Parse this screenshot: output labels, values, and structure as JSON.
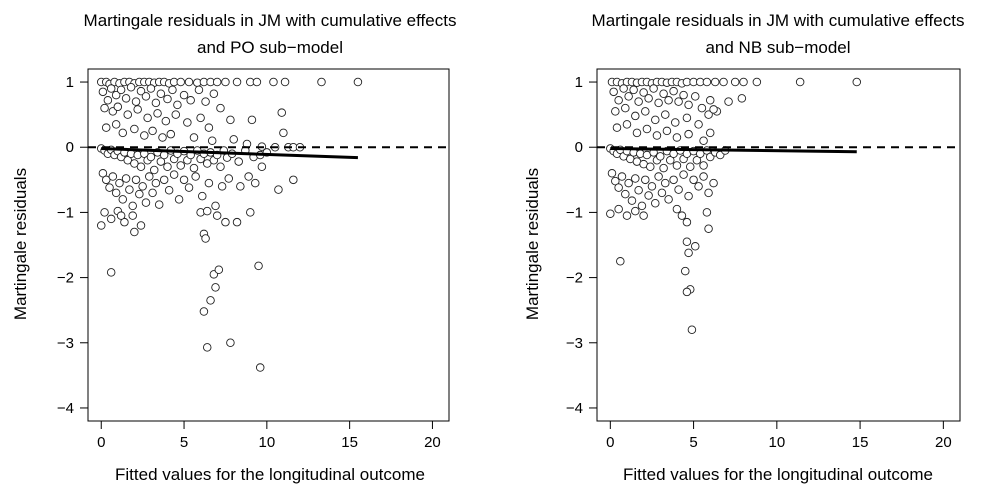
{
  "chart_data": [
    {
      "type": "scatter",
      "title": "Martingale residuals in JM with cumulative effects",
      "subtitle": "and PO sub−model",
      "xlabel": "Fitted values for the longitudinal outcome",
      "ylabel": "Martingale residuals",
      "xlim": [
        -0.8,
        21
      ],
      "ylim": [
        -4.2,
        1.2
      ],
      "xticks": [
        "0",
        "5",
        "10",
        "15",
        "20"
      ],
      "yticks": [
        "−4",
        "−3",
        "−2",
        "−1",
        "0",
        "1"
      ],
      "reference_line": {
        "y": 0,
        "style": "dashed"
      },
      "trend_line": {
        "x": [
          0,
          15.5
        ],
        "y": [
          -0.02,
          -0.16
        ]
      },
      "points": [
        [
          0.0,
          1.0
        ],
        [
          0.3,
          1.0
        ],
        [
          0.5,
          0.97
        ],
        [
          0.8,
          1.0
        ],
        [
          1.1,
          0.98
        ],
        [
          1.4,
          1.0
        ],
        [
          1.7,
          1.0
        ],
        [
          2.0,
          0.98
        ],
        [
          2.3,
          1.0
        ],
        [
          2.6,
          1.0
        ],
        [
          2.9,
          1.0
        ],
        [
          3.2,
          0.99
        ],
        [
          3.5,
          1.0
        ],
        [
          3.8,
          1.0
        ],
        [
          4.1,
          0.98
        ],
        [
          4.4,
          1.0
        ],
        [
          4.8,
          1.0
        ],
        [
          5.3,
          1.0
        ],
        [
          5.8,
          0.99
        ],
        [
          6.2,
          1.0
        ],
        [
          6.6,
          1.0
        ],
        [
          7.0,
          1.0
        ],
        [
          7.5,
          1.0
        ],
        [
          8.2,
          1.0
        ],
        [
          9.0,
          1.0
        ],
        [
          9.4,
          1.0
        ],
        [
          10.4,
          1.0
        ],
        [
          11.1,
          1.0
        ],
        [
          13.3,
          1.0
        ],
        [
          15.5,
          1.0
        ],
        [
          0.1,
          0.85
        ],
        [
          0.4,
          0.72
        ],
        [
          0.6,
          0.9
        ],
        [
          0.9,
          0.8
        ],
        [
          1.2,
          0.88
        ],
        [
          1.5,
          0.75
        ],
        [
          1.8,
          0.92
        ],
        [
          2.1,
          0.7
        ],
        [
          2.4,
          0.86
        ],
        [
          2.7,
          0.78
        ],
        [
          3.0,
          0.9
        ],
        [
          3.3,
          0.68
        ],
        [
          3.6,
          0.82
        ],
        [
          4.0,
          0.74
        ],
        [
          4.3,
          0.88
        ],
        [
          4.6,
          0.65
        ],
        [
          5.0,
          0.8
        ],
        [
          5.4,
          0.72
        ],
        [
          5.9,
          0.88
        ],
        [
          6.3,
          0.7
        ],
        [
          6.8,
          0.82
        ],
        [
          7.2,
          0.6
        ],
        [
          0.2,
          0.6
        ],
        [
          0.7,
          0.55
        ],
        [
          1.0,
          0.62
        ],
        [
          1.6,
          0.5
        ],
        [
          2.2,
          0.58
        ],
        [
          2.8,
          0.45
        ],
        [
          3.4,
          0.52
        ],
        [
          3.9,
          0.4
        ],
        [
          4.5,
          0.5
        ],
        [
          5.2,
          0.38
        ],
        [
          6.0,
          0.45
        ],
        [
          6.5,
          0.3
        ],
        [
          7.8,
          0.42
        ],
        [
          9.1,
          0.42
        ],
        [
          10.9,
          0.53
        ],
        [
          11.0,
          0.22
        ],
        [
          0.3,
          0.3
        ],
        [
          0.9,
          0.35
        ],
        [
          1.3,
          0.22
        ],
        [
          2.0,
          0.28
        ],
        [
          2.6,
          0.18
        ],
        [
          3.1,
          0.25
        ],
        [
          3.7,
          0.15
        ],
        [
          4.2,
          0.2
        ],
        [
          5.6,
          0.15
        ],
        [
          6.7,
          0.1
        ],
        [
          8.0,
          0.12
        ],
        [
          8.8,
          0.05
        ],
        [
          9.7,
          0.01
        ],
        [
          10.5,
          0.0
        ],
        [
          11.3,
          0.0
        ],
        [
          11.6,
          0.0
        ],
        [
          12.0,
          0.0
        ],
        [
          0.0,
          -0.02
        ],
        [
          0.2,
          -0.05
        ],
        [
          0.4,
          -0.1
        ],
        [
          0.6,
          -0.04
        ],
        [
          0.8,
          -0.12
        ],
        [
          1.0,
          -0.06
        ],
        [
          1.2,
          -0.15
        ],
        [
          1.4,
          -0.08
        ],
        [
          1.6,
          -0.2
        ],
        [
          1.8,
          -0.1
        ],
        [
          2.0,
          -0.25
        ],
        [
          2.2,
          -0.12
        ],
        [
          2.4,
          -0.3
        ],
        [
          2.6,
          -0.1
        ],
        [
          2.8,
          -0.2
        ],
        [
          3.0,
          -0.15
        ],
        [
          3.2,
          -0.35
        ],
        [
          3.4,
          -0.08
        ],
        [
          3.6,
          -0.22
        ],
        [
          3.8,
          -0.12
        ],
        [
          4.0,
          -0.3
        ],
        [
          4.2,
          -0.05
        ],
        [
          4.4,
          -0.18
        ],
        [
          4.6,
          -0.1
        ],
        [
          4.8,
          -0.28
        ],
        [
          5.0,
          -0.06
        ],
        [
          5.2,
          -0.2
        ],
        [
          5.4,
          -0.12
        ],
        [
          5.6,
          -0.32
        ],
        [
          5.8,
          -0.05
        ],
        [
          6.0,
          -0.18
        ],
        [
          6.2,
          -0.1
        ],
        [
          6.4,
          -0.25
        ],
        [
          6.6,
          -0.08
        ],
        [
          6.8,
          -0.2
        ],
        [
          7.0,
          -0.12
        ],
        [
          7.2,
          -0.3
        ],
        [
          7.4,
          -0.05
        ],
        [
          7.6,
          -0.16
        ],
        [
          7.9,
          -0.1
        ],
        [
          8.3,
          -0.22
        ],
        [
          8.7,
          -0.05
        ],
        [
          9.2,
          -0.15
        ],
        [
          9.6,
          -0.12
        ],
        [
          10.0,
          -0.08
        ],
        [
          0.1,
          -0.4
        ],
        [
          0.3,
          -0.5
        ],
        [
          0.5,
          -0.62
        ],
        [
          0.7,
          -0.45
        ],
        [
          0.9,
          -0.7
        ],
        [
          1.1,
          -0.55
        ],
        [
          1.3,
          -0.8
        ],
        [
          1.5,
          -0.48
        ],
        [
          1.7,
          -0.65
        ],
        [
          1.9,
          -0.9
        ],
        [
          2.1,
          -0.5
        ],
        [
          2.3,
          -0.72
        ],
        [
          2.5,
          -0.6
        ],
        [
          2.7,
          -0.85
        ],
        [
          2.9,
          -0.45
        ],
        [
          3.1,
          -0.7
        ],
        [
          3.3,
          -0.55
        ],
        [
          3.5,
          -0.88
        ],
        [
          3.8,
          -0.5
        ],
        [
          4.1,
          -0.66
        ],
        [
          4.4,
          -0.42
        ],
        [
          4.7,
          -0.8
        ],
        [
          5.0,
          -0.5
        ],
        [
          5.3,
          -0.62
        ],
        [
          5.7,
          -0.45
        ],
        [
          6.1,
          -0.75
        ],
        [
          6.5,
          -0.55
        ],
        [
          6.9,
          -0.9
        ],
        [
          7.3,
          -0.6
        ],
        [
          7.7,
          -0.48
        ],
        [
          8.4,
          -0.6
        ],
        [
          8.9,
          -0.45
        ],
        [
          9.3,
          -0.55
        ],
        [
          0.2,
          -1.0
        ],
        [
          0.6,
          -1.1
        ],
        [
          1.0,
          -0.98
        ],
        [
          1.4,
          -1.15
        ],
        [
          1.9,
          -1.05
        ],
        [
          2.4,
          -1.2
        ],
        [
          2.0,
          -1.3
        ],
        [
          6.0,
          -1.0
        ],
        [
          6.4,
          -0.98
        ],
        [
          7.0,
          -1.05
        ],
        [
          7.5,
          -1.15
        ],
        [
          8.2,
          -1.15
        ],
        [
          9.0,
          -1.0
        ],
        [
          0.0,
          -1.2
        ],
        [
          1.2,
          -1.05
        ],
        [
          10.7,
          -0.65
        ],
        [
          11.6,
          -0.5
        ],
        [
          9.7,
          -0.3
        ],
        [
          0.6,
          -1.92
        ],
        [
          6.2,
          -1.33
        ],
        [
          6.3,
          -1.4
        ],
        [
          6.8,
          -1.95
        ],
        [
          7.1,
          -1.88
        ],
        [
          6.9,
          -2.15
        ],
        [
          6.6,
          -2.35
        ],
        [
          6.2,
          -2.52
        ],
        [
          6.4,
          -3.07
        ],
        [
          7.8,
          -3.0
        ],
        [
          9.5,
          -1.82
        ],
        [
          9.6,
          -3.38
        ]
      ]
    },
    {
      "type": "scatter",
      "title": "Martingale residuals in JM with cumulative effects",
      "subtitle": "and NB sub−model",
      "xlabel": "Fitted values for the longitudinal outcome",
      "ylabel": "Martingale residuals",
      "xlim": [
        -0.8,
        21
      ],
      "ylim": [
        -4.2,
        1.2
      ],
      "xticks": [
        "0",
        "5",
        "10",
        "15",
        "20"
      ],
      "yticks": [
        "−4",
        "−3",
        "−2",
        "−1",
        "0",
        "1"
      ],
      "reference_line": {
        "y": 0,
        "style": "dashed"
      },
      "trend_line": {
        "x": [
          0,
          14.8
        ],
        "y": [
          -0.02,
          -0.07
        ]
      },
      "points": [
        [
          0.1,
          1.0
        ],
        [
          0.4,
          1.0
        ],
        [
          0.7,
          0.98
        ],
        [
          1.0,
          1.0
        ],
        [
          1.3,
          1.0
        ],
        [
          1.6,
          0.99
        ],
        [
          1.9,
          1.0
        ],
        [
          2.2,
          1.0
        ],
        [
          2.5,
          0.98
        ],
        [
          2.8,
          1.0
        ],
        [
          3.1,
          1.0
        ],
        [
          3.4,
          0.99
        ],
        [
          3.7,
          1.0
        ],
        [
          4.0,
          1.0
        ],
        [
          4.3,
          0.98
        ],
        [
          4.6,
          1.0
        ],
        [
          5.0,
          1.0
        ],
        [
          5.4,
          1.0
        ],
        [
          5.8,
          1.0
        ],
        [
          6.3,
          1.0
        ],
        [
          6.8,
          1.0
        ],
        [
          7.5,
          1.0
        ],
        [
          8.0,
          1.0
        ],
        [
          8.8,
          1.0
        ],
        [
          11.4,
          1.0
        ],
        [
          14.8,
          1.0
        ],
        [
          0.2,
          0.85
        ],
        [
          0.5,
          0.72
        ],
        [
          0.8,
          0.9
        ],
        [
          1.1,
          0.78
        ],
        [
          1.4,
          0.88
        ],
        [
          1.7,
          0.7
        ],
        [
          2.0,
          0.84
        ],
        [
          2.3,
          0.75
        ],
        [
          2.6,
          0.9
        ],
        [
          2.9,
          0.68
        ],
        [
          3.2,
          0.82
        ],
        [
          3.5,
          0.72
        ],
        [
          3.8,
          0.86
        ],
        [
          4.1,
          0.7
        ],
        [
          4.4,
          0.8
        ],
        [
          4.7,
          0.65
        ],
        [
          5.1,
          0.78
        ],
        [
          5.5,
          0.6
        ],
        [
          6.0,
          0.72
        ],
        [
          6.4,
          0.55
        ],
        [
          7.1,
          0.7
        ],
        [
          7.9,
          0.75
        ],
        [
          0.3,
          0.55
        ],
        [
          0.9,
          0.6
        ],
        [
          1.5,
          0.48
        ],
        [
          2.1,
          0.55
        ],
        [
          2.7,
          0.42
        ],
        [
          3.3,
          0.5
        ],
        [
          3.9,
          0.38
        ],
        [
          4.6,
          0.45
        ],
        [
          5.3,
          0.35
        ],
        [
          5.9,
          0.5
        ],
        [
          6.2,
          0.58
        ],
        [
          0.4,
          0.3
        ],
        [
          1.0,
          0.35
        ],
        [
          1.6,
          0.22
        ],
        [
          2.2,
          0.28
        ],
        [
          2.8,
          0.18
        ],
        [
          3.4,
          0.25
        ],
        [
          4.0,
          0.15
        ],
        [
          4.7,
          0.2
        ],
        [
          5.6,
          0.1
        ],
        [
          6.0,
          0.22
        ],
        [
          0.0,
          -0.02
        ],
        [
          0.2,
          -0.06
        ],
        [
          0.4,
          -0.1
        ],
        [
          0.6,
          -0.04
        ],
        [
          0.8,
          -0.14
        ],
        [
          1.0,
          -0.06
        ],
        [
          1.2,
          -0.18
        ],
        [
          1.4,
          -0.08
        ],
        [
          1.6,
          -0.22
        ],
        [
          1.8,
          -0.1
        ],
        [
          2.0,
          -0.26
        ],
        [
          2.2,
          -0.12
        ],
        [
          2.4,
          -0.3
        ],
        [
          2.6,
          -0.08
        ],
        [
          2.8,
          -0.2
        ],
        [
          3.0,
          -0.14
        ],
        [
          3.2,
          -0.32
        ],
        [
          3.4,
          -0.06
        ],
        [
          3.6,
          -0.2
        ],
        [
          3.8,
          -0.1
        ],
        [
          4.0,
          -0.28
        ],
        [
          4.2,
          -0.05
        ],
        [
          4.4,
          -0.18
        ],
        [
          4.6,
          -0.1
        ],
        [
          4.8,
          -0.3
        ],
        [
          5.0,
          -0.06
        ],
        [
          5.2,
          -0.2
        ],
        [
          5.4,
          -0.1
        ],
        [
          5.6,
          -0.28
        ],
        [
          5.8,
          -0.05
        ],
        [
          6.0,
          -0.15
        ],
        [
          6.3,
          -0.08
        ],
        [
          6.6,
          -0.12
        ],
        [
          6.9,
          -0.05
        ],
        [
          0.1,
          -0.4
        ],
        [
          0.3,
          -0.52
        ],
        [
          0.5,
          -0.62
        ],
        [
          0.7,
          -0.45
        ],
        [
          0.9,
          -0.72
        ],
        [
          1.1,
          -0.55
        ],
        [
          1.3,
          -0.82
        ],
        [
          1.5,
          -0.48
        ],
        [
          1.7,
          -0.66
        ],
        [
          1.9,
          -0.9
        ],
        [
          2.1,
          -0.5
        ],
        [
          2.3,
          -0.74
        ],
        [
          2.5,
          -0.6
        ],
        [
          2.7,
          -0.86
        ],
        [
          2.9,
          -0.45
        ],
        [
          3.1,
          -0.7
        ],
        [
          3.3,
          -0.55
        ],
        [
          3.5,
          -0.8
        ],
        [
          3.8,
          -0.5
        ],
        [
          4.1,
          -0.65
        ],
        [
          4.4,
          -0.42
        ],
        [
          4.7,
          -0.75
        ],
        [
          5.0,
          -0.5
        ],
        [
          5.3,
          -0.6
        ],
        [
          5.6,
          -0.45
        ],
        [
          5.9,
          -0.7
        ],
        [
          6.2,
          -0.55
        ],
        [
          0.0,
          -1.02
        ],
        [
          0.5,
          -0.95
        ],
        [
          1.0,
          -1.05
        ],
        [
          1.5,
          -0.98
        ],
        [
          2.0,
          -1.05
        ],
        [
          4.0,
          -0.95
        ],
        [
          4.3,
          -1.05
        ],
        [
          4.6,
          -1.15
        ],
        [
          5.8,
          -1.0
        ],
        [
          5.9,
          -1.25
        ],
        [
          0.6,
          -1.75
        ],
        [
          4.6,
          -1.45
        ],
        [
          4.7,
          -1.62
        ],
        [
          4.5,
          -1.9
        ],
        [
          5.1,
          -1.52
        ],
        [
          4.8,
          -2.18
        ],
        [
          4.6,
          -2.22
        ],
        [
          4.9,
          -2.8
        ]
      ]
    }
  ]
}
